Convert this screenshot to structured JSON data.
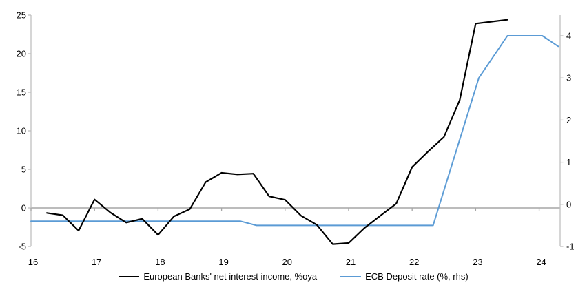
{
  "chart_data": {
    "type": "line",
    "title": "",
    "x_axis": {
      "ticks": [
        16,
        17,
        18,
        19,
        20,
        21,
        22,
        23,
        24
      ],
      "range": [
        16,
        24.33
      ]
    },
    "left_axis": {
      "ticks": [
        25,
        20,
        15,
        10,
        5,
        0,
        -5
      ],
      "range": [
        -5,
        25
      ]
    },
    "right_axis": {
      "ticks": [
        4,
        3,
        2,
        1,
        0,
        -1
      ],
      "range": [
        -1,
        4.49
      ]
    },
    "grid": "zero-line-only",
    "legend_position": "bottom-center",
    "series": [
      {
        "name": "European Banks' net interest income, %oya",
        "axis": "left",
        "color": "#000000",
        "width": 2.2,
        "x_start": 16.25,
        "x_step": 0.25,
        "values": [
          -0.65,
          -0.95,
          -2.95,
          1.1,
          -0.6,
          -1.9,
          -1.4,
          -3.5,
          -1.1,
          -0.15,
          3.35,
          4.55,
          4.35,
          4.45,
          1.5,
          1.05,
          -1.0,
          -2.2,
          -4.7,
          -4.55,
          -2.6,
          -1.0,
          0.55,
          5.3,
          7.3,
          9.2,
          14.0,
          23.9,
          24.15,
          24.4
        ]
      },
      {
        "name": "ECB Deposit rate (%, rhs)",
        "axis": "right",
        "color": "#5B9BD5",
        "width": 2,
        "points": [
          [
            16.0,
            -0.4
          ],
          [
            19.3,
            -0.4
          ],
          [
            19.55,
            -0.5
          ],
          [
            22.33,
            -0.5
          ],
          [
            23.05,
            3.0
          ],
          [
            23.5,
            4.0
          ],
          [
            24.05,
            4.0
          ],
          [
            24.3,
            3.75
          ]
        ]
      }
    ]
  },
  "colors": {
    "background": "#FFFFFF",
    "axis_line": "#BFBFBF",
    "zero_line": "#A6A6A6",
    "tick_text": "#000000",
    "accent_blue": "#5B9BD5",
    "series_black": "#000000"
  }
}
